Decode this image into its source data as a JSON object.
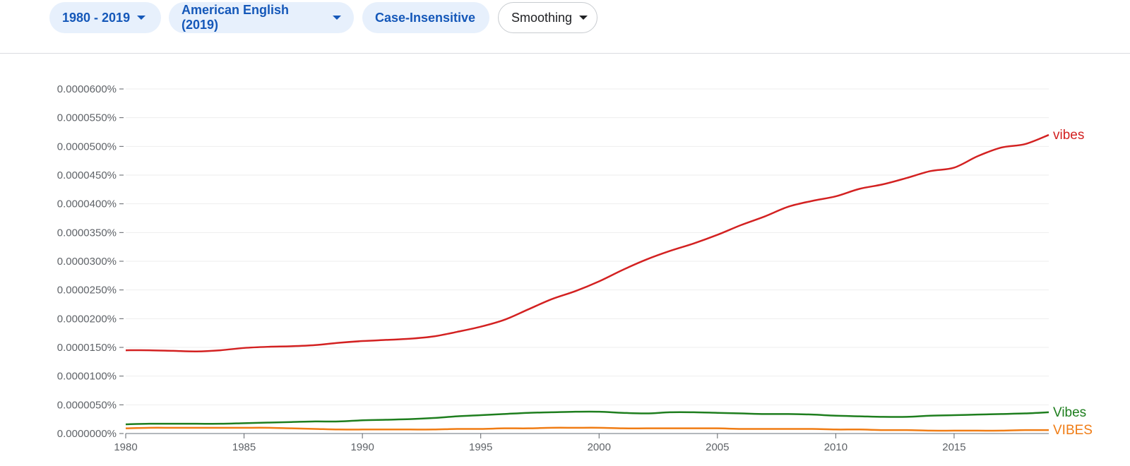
{
  "toolbar": {
    "range_label": "1980 - 2019",
    "corpus_label": "American English (2019)",
    "case_label": "Case-Insensitive",
    "smoothing_label": "Smoothing"
  },
  "colors": {
    "chip_text": "#1558b9",
    "chip_bg": "#e7f0fc",
    "vibes": "#d32121",
    "Vibes": "#1e7e1e",
    "VIBES": "#f07c14"
  },
  "chart_data": {
    "type": "line",
    "xlim": [
      1980,
      2019
    ],
    "ylim": [
      0,
      6e-05
    ],
    "y_ticks": [
      "0.0000000%",
      "0.0000050%",
      "0.0000100%",
      "0.0000150%",
      "0.0000200%",
      "0.0000250%",
      "0.0000300%",
      "0.0000350%",
      "0.0000400%",
      "0.0000450%",
      "0.0000500%",
      "0.0000550%",
      "0.0000600%"
    ],
    "x_ticks": [
      "1980",
      "1985",
      "1990",
      "1995",
      "2000",
      "2005",
      "2010",
      "2015"
    ],
    "grid": true,
    "legend_placement": "right-end-labels",
    "x": [
      1980,
      1981,
      1982,
      1983,
      1984,
      1985,
      1986,
      1987,
      1988,
      1989,
      1990,
      1991,
      1992,
      1993,
      1994,
      1995,
      1996,
      1997,
      1998,
      1999,
      2000,
      2001,
      2002,
      2003,
      2004,
      2005,
      2006,
      2007,
      2008,
      2009,
      2010,
      2011,
      2012,
      2013,
      2014,
      2015,
      2016,
      2017,
      2018,
      2019
    ],
    "series": [
      {
        "name": "vibes",
        "color": "#d32121",
        "values": [
          1.45e-05,
          1.45e-05,
          1.44e-05,
          1.43e-05,
          1.45e-05,
          1.49e-05,
          1.51e-05,
          1.52e-05,
          1.54e-05,
          1.58e-05,
          1.61e-05,
          1.63e-05,
          1.65e-05,
          1.69e-05,
          1.77e-05,
          1.86e-05,
          1.98e-05,
          2.16e-05,
          2.34e-05,
          2.48e-05,
          2.65e-05,
          2.85e-05,
          3.03e-05,
          3.18e-05,
          3.31e-05,
          3.46e-05,
          3.63e-05,
          3.78e-05,
          3.95e-05,
          4.05e-05,
          4.13e-05,
          4.26e-05,
          4.34e-05,
          4.45e-05,
          4.57e-05,
          4.63e-05,
          4.83e-05,
          4.98e-05,
          5.04e-05,
          5.2e-05
        ]
      },
      {
        "name": "Vibes",
        "color": "#1e7e1e",
        "values": [
          1.6e-06,
          1.7e-06,
          1.7e-06,
          1.7e-06,
          1.7e-06,
          1.8e-06,
          1.9e-06,
          2e-06,
          2.1e-06,
          2.1e-06,
          2.3e-06,
          2.4e-06,
          2.5e-06,
          2.7e-06,
          3e-06,
          3.2e-06,
          3.4e-06,
          3.6e-06,
          3.7e-06,
          3.8e-06,
          3.8e-06,
          3.6e-06,
          3.5e-06,
          3.7e-06,
          3.7e-06,
          3.6e-06,
          3.5e-06,
          3.4e-06,
          3.4e-06,
          3.3e-06,
          3.1e-06,
          3e-06,
          2.9e-06,
          2.9e-06,
          3.1e-06,
          3.2e-06,
          3.3e-06,
          3.4e-06,
          3.5e-06,
          3.7e-06
        ]
      },
      {
        "name": "VIBES",
        "color": "#f07c14",
        "values": [
          9e-07,
          1e-06,
          1e-06,
          1e-06,
          1e-06,
          1e-06,
          1e-06,
          9e-07,
          8e-07,
          7e-07,
          7e-07,
          7e-07,
          7e-07,
          7e-07,
          8e-07,
          8e-07,
          9e-07,
          9e-07,
          1e-06,
          1e-06,
          1e-06,
          9e-07,
          9e-07,
          9e-07,
          9e-07,
          9e-07,
          8e-07,
          8e-07,
          8e-07,
          8e-07,
          7e-07,
          7e-07,
          6e-07,
          6e-07,
          5e-07,
          5e-07,
          5e-07,
          5e-07,
          6e-07,
          6e-07
        ]
      }
    ]
  }
}
